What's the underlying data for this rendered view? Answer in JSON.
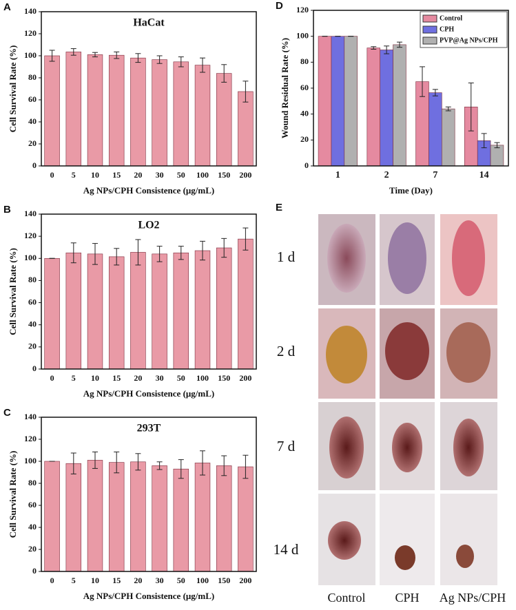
{
  "chart_data": [
    {
      "type": "bar",
      "label": "A",
      "title": "HaCat",
      "xlabel": "Ag NPs/CPH Consistence (μg/mL)",
      "ylabel": "Cell Survival Rate (%)",
      "categories": [
        "0",
        "5",
        "10",
        "15",
        "20",
        "30",
        "50",
        "100",
        "150",
        "200"
      ],
      "values": [
        100,
        103.5,
        101,
        100.5,
        98,
        96.5,
        94.5,
        91.5,
        84,
        67.5
      ],
      "errors": [
        5,
        3,
        2,
        3,
        4,
        3.5,
        4.5,
        6.5,
        8,
        9.5
      ],
      "color": "#e99aa6",
      "ylim": [
        0,
        140
      ],
      "yticks": [
        0,
        20,
        40,
        60,
        80,
        100,
        120,
        140
      ]
    },
    {
      "type": "bar",
      "label": "B",
      "title": "LO2",
      "xlabel": "Ag NPs/CPH Consistence (μg/mL)",
      "ylabel": "Cell Survival Rate (%)",
      "categories": [
        "0",
        "5",
        "10",
        "15",
        "20",
        "30",
        "50",
        "100",
        "150",
        "200"
      ],
      "values": [
        100,
        105,
        104,
        101.5,
        105.5,
        104,
        105,
        107,
        109.5,
        117.5
      ],
      "errors": [
        0,
        9,
        9.5,
        7.5,
        11.5,
        7,
        6,
        8.5,
        8.5,
        10
      ],
      "color": "#e99aa6",
      "ylim": [
        0,
        140
      ],
      "yticks": [
        0,
        20,
        40,
        60,
        80,
        100,
        120,
        140
      ]
    },
    {
      "type": "bar",
      "label": "C",
      "title": "293T",
      "xlabel": "Ag NPs/CPH Consistence (μg/mL)",
      "ylabel": "Cell Survival Rate (%)",
      "categories": [
        "0",
        "5",
        "10",
        "15",
        "20",
        "30",
        "50",
        "100",
        "150",
        "200"
      ],
      "values": [
        100,
        98,
        101,
        99,
        99.5,
        96,
        93,
        98.5,
        96,
        95
      ],
      "errors": [
        0,
        9.5,
        7.5,
        9.5,
        7.5,
        3.5,
        8.5,
        11,
        9,
        10.5
      ],
      "color": "#e99aa6",
      "ylim": [
        0,
        140
      ],
      "yticks": [
        0,
        20,
        40,
        60,
        80,
        100,
        120,
        140
      ]
    },
    {
      "type": "grouped_bar",
      "label": "D",
      "xlabel": "Time (Day)",
      "ylabel": "Wound Residual Rate (%)",
      "categories": [
        "1",
        "2",
        "7",
        "14"
      ],
      "series": [
        {
          "name": "Control",
          "color": "#e58aa0",
          "values": [
            100,
            91,
            65,
            45.5
          ],
          "errors": [
            0,
            1,
            11.5,
            18.5
          ]
        },
        {
          "name": "CPH",
          "color": "#6f6fe0",
          "values": [
            100,
            89.5,
            56.5,
            19.5
          ],
          "errors": [
            0,
            3,
            2.5,
            5.5
          ]
        },
        {
          "name": "PVP@Ag NPs/CPH",
          "color": "#b0b0b0",
          "values": [
            100,
            93.5,
            44,
            16
          ],
          "errors": [
            0,
            2,
            1.5,
            2
          ]
        }
      ],
      "legend": "upper-right",
      "ylim": [
        0,
        120
      ],
      "yticks": [
        0,
        20,
        40,
        60,
        80,
        100,
        120
      ]
    }
  ],
  "panel_e": {
    "label": "E",
    "rows": [
      "1 d",
      "2 d",
      "7 d",
      "14 d"
    ],
    "columns": [
      "Control",
      "CPH",
      "Ag NPs/CPH"
    ]
  }
}
